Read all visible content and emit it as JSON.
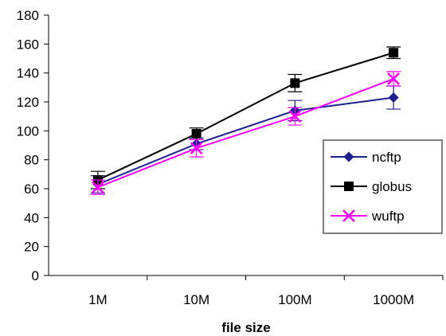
{
  "chart_data": {
    "type": "line",
    "title": "",
    "xlabel": "file size",
    "ylabel": "",
    "categories": [
      "1M",
      "10M",
      "100M",
      "1000M"
    ],
    "ylim": [
      0,
      180
    ],
    "yticks": [
      0,
      20,
      40,
      60,
      80,
      100,
      120,
      140,
      160,
      180
    ],
    "grid": false,
    "legend_position": "right",
    "series": [
      {
        "name": "ncftp",
        "marker": "diamond",
        "color": "#1f1f8f",
        "values": [
          63,
          91,
          114,
          123
        ],
        "error": [
          6,
          4,
          7,
          8
        ]
      },
      {
        "name": "globus",
        "marker": "square",
        "color": "#000000",
        "values": [
          66,
          98,
          133,
          154
        ],
        "error": [
          6,
          4,
          6,
          4
        ]
      },
      {
        "name": "wuftp",
        "marker": "x",
        "color": "#ff00ff",
        "values": [
          61,
          88,
          110,
          136
        ],
        "error": [
          5,
          6,
          6,
          5
        ]
      }
    ]
  }
}
